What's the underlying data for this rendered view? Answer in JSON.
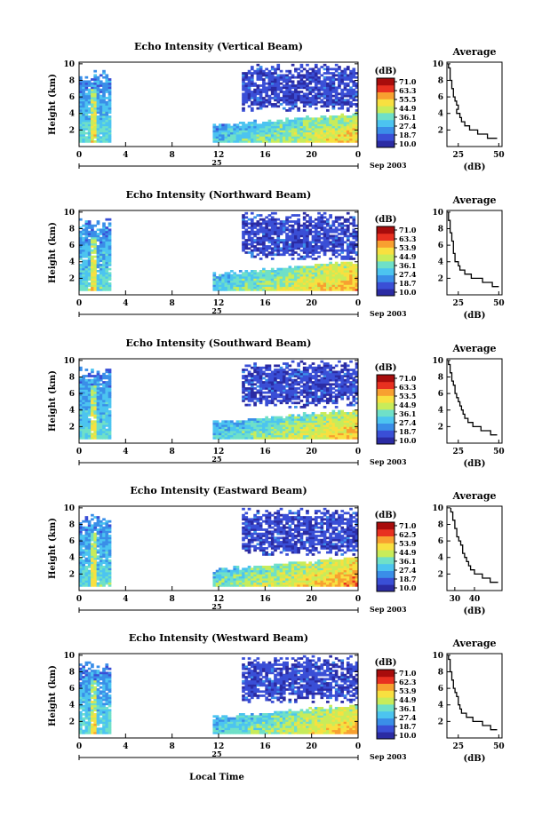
{
  "chart_data": [
    {
      "type": "heatmap",
      "panel": 0,
      "title": "Echo Intensity (Vertical Beam)",
      "ylabel": "Height (km)",
      "x_ticks": [
        "0",
        "4",
        "8",
        "12",
        "16",
        "20",
        "0"
      ],
      "y_ticks": [
        "2",
        "4",
        "6",
        "8",
        "10"
      ],
      "date_label": "25",
      "month_label": "Sep 2003",
      "colorbar": {
        "unit": "(dB)",
        "ticks": [
          "71.0",
          "63.3",
          "55.5",
          "44.9",
          "36.1",
          "27.4",
          "18.7",
          "10.0"
        ]
      },
      "average": {
        "title": "Average",
        "xlabel": "(dB)",
        "x_ticks": [
          "25",
          "50"
        ],
        "x_range": [
          18,
          52
        ],
        "y_ticks": [
          "2",
          "4",
          "6",
          "8",
          "10"
        ],
        "profile": {
          "h": [
            1,
            1.5,
            2,
            2.5,
            3,
            3.5,
            4,
            4.5,
            5,
            5.5,
            6,
            6.5,
            7,
            7.5,
            8,
            8.5,
            9,
            9.5,
            10
          ],
          "db": [
            49,
            43,
            37,
            32,
            29,
            27,
            26,
            24,
            25,
            24,
            23,
            22,
            22,
            21,
            21,
            20,
            20,
            20,
            19
          ]
        }
      }
    },
    {
      "type": "heatmap",
      "panel": 1,
      "title": "Echo Intensity (Northward Beam)",
      "ylabel": "Height (km)",
      "x_ticks": [
        "0",
        "4",
        "8",
        "12",
        "16",
        "20",
        "0"
      ],
      "y_ticks": [
        "2",
        "4",
        "6",
        "8",
        "10"
      ],
      "date_label": "25",
      "month_label": "Sep 2003",
      "colorbar": {
        "unit": "(dB)",
        "ticks": [
          "71.0",
          "63.3",
          "53.9",
          "44.9",
          "36.1",
          "27.4",
          "18.7",
          "10.0"
        ]
      },
      "average": {
        "title": "Average",
        "xlabel": "(dB)",
        "x_ticks": [
          "25",
          "50"
        ],
        "x_range": [
          18,
          52
        ],
        "y_ticks": [
          "2",
          "4",
          "6",
          "8",
          "10"
        ],
        "profile": {
          "h": [
            1,
            1.5,
            2,
            2.5,
            3,
            3.5,
            4,
            4.5,
            5,
            5.5,
            6,
            6.5,
            7,
            7.5,
            8,
            8.5,
            9,
            9.5,
            10
          ],
          "db": [
            50,
            46,
            40,
            33,
            29,
            26,
            25,
            23,
            23,
            22,
            22,
            22,
            21,
            21,
            20,
            20,
            20,
            19,
            19
          ]
        }
      }
    },
    {
      "type": "heatmap",
      "panel": 2,
      "title": "Echo Intensity (Southward Beam)",
      "ylabel": "Height (km)",
      "x_ticks": [
        "0",
        "4",
        "8",
        "12",
        "16",
        "20",
        "0"
      ],
      "y_ticks": [
        "2",
        "4",
        "6",
        "8",
        "10"
      ],
      "date_label": "25",
      "month_label": "Sep 2003",
      "colorbar": {
        "unit": "(dB)",
        "ticks": [
          "71.0",
          "63.3",
          "53.5",
          "44.9",
          "36.1",
          "27.4",
          "18.7",
          "10.0"
        ]
      },
      "average": {
        "title": "Average",
        "xlabel": "(dB)",
        "x_ticks": [
          "25",
          "50"
        ],
        "x_range": [
          18,
          52
        ],
        "y_ticks": [
          "2",
          "4",
          "6",
          "8",
          "10"
        ],
        "profile": {
          "h": [
            1,
            1.5,
            2,
            2.5,
            3,
            3.5,
            4,
            4.5,
            5,
            5.5,
            6,
            6.5,
            7,
            7.5,
            8,
            8.5,
            9,
            9.5,
            10
          ],
          "db": [
            49,
            45,
            39,
            34,
            31,
            29,
            28,
            27,
            26,
            25,
            24,
            23,
            23,
            22,
            21,
            21,
            20,
            20,
            19
          ]
        }
      }
    },
    {
      "type": "heatmap",
      "panel": 3,
      "title": "Echo Intensity (Eastward Beam)",
      "ylabel": "Height (km)",
      "x_ticks": [
        "0",
        "4",
        "8",
        "12",
        "16",
        "20",
        "0"
      ],
      "y_ticks": [
        "2",
        "4",
        "6",
        "8",
        "10"
      ],
      "date_label": "25",
      "month_label": "Sep 2003",
      "colorbar": {
        "unit": "(dB)",
        "ticks": [
          "71.0",
          "62.5",
          "53.9",
          "44.9",
          "36.1",
          "27.4",
          "18.7",
          "10.0"
        ]
      },
      "average": {
        "title": "Average",
        "xlabel": "(dB)",
        "x_ticks": [
          "30",
          "40"
        ],
        "x_range": [
          26,
          54
        ],
        "y_ticks": [
          "2",
          "4",
          "6",
          "8",
          "10"
        ],
        "profile": {
          "h": [
            1,
            1.5,
            2,
            2.5,
            3,
            3.5,
            4,
            4.5,
            5,
            5.5,
            6,
            6.5,
            7,
            7.5,
            8,
            8.5,
            9,
            9.5,
            10
          ],
          "db": [
            52,
            48,
            44,
            40,
            38,
            37,
            36,
            35,
            34,
            34,
            33,
            32,
            31,
            31,
            30,
            30,
            29,
            29,
            28
          ]
        }
      }
    },
    {
      "type": "heatmap",
      "panel": 4,
      "title": "Echo Intensity (Westward Beam)",
      "ylabel": "Height (km)",
      "x_ticks": [
        "0",
        "4",
        "8",
        "12",
        "16",
        "20",
        "0"
      ],
      "y_ticks": [
        "2",
        "4",
        "6",
        "8",
        "10"
      ],
      "date_label": "25",
      "month_label": "Sep 2003",
      "colorbar": {
        "unit": "(dB)",
        "ticks": [
          "71.0",
          "62.3",
          "53.9",
          "44.9",
          "36.1",
          "27.4",
          "18.7",
          "10.0"
        ]
      },
      "average": {
        "title": "Average",
        "xlabel": "(dB)",
        "x_ticks": [
          "25",
          "50"
        ],
        "x_range": [
          18,
          52
        ],
        "y_ticks": [
          "2",
          "4",
          "6",
          "8",
          "10"
        ],
        "profile": {
          "h": [
            1,
            1.5,
            2,
            2.5,
            3,
            3.5,
            4,
            4.5,
            5,
            5.5,
            6,
            6.5,
            7,
            7.5,
            8,
            8.5,
            9,
            9.5,
            10
          ],
          "db": [
            49,
            45,
            40,
            34,
            30,
            27,
            26,
            25,
            25,
            24,
            23,
            22,
            22,
            21,
            21,
            20,
            20,
            20,
            19
          ]
        }
      }
    }
  ],
  "footer": {
    "xlabel": "Local Time"
  },
  "colors": {
    "scale": [
      "#2b2ba3",
      "#3a4fd6",
      "#3a8ee8",
      "#4cc4f0",
      "#6fe0c8",
      "#c8ec5a",
      "#f8e040",
      "#f8a030",
      "#e83020",
      "#a80c0c"
    ]
  }
}
